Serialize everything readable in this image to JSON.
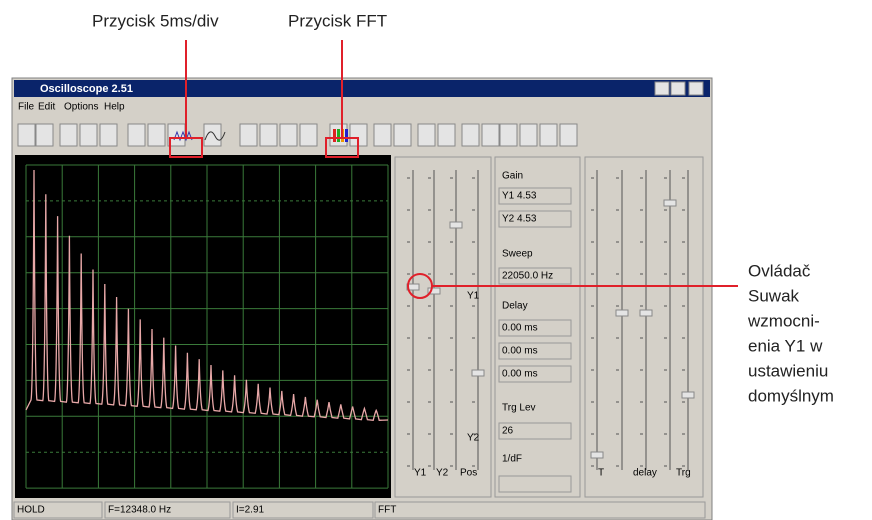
{
  "annotations": {
    "button_5ms": "Przycisk 5ms/div",
    "button_fft": "Przycisk FFT",
    "slider_note": [
      "Ovládač",
      "Suwak",
      "wzmocni-",
      "enia  Y1 w",
      "ustawieniu",
      "domyślnym"
    ]
  },
  "window": {
    "title": "Oscilloscope 2.51",
    "menu": [
      "File",
      "Edit",
      "Options",
      "Help"
    ]
  },
  "panel": {
    "gain": "Gain",
    "y1_gain": "Y1  4.53",
    "y2_gain": "Y2  4.53",
    "sweep": "Sweep",
    "sweep_value": "22050.0 Hz",
    "delay": "Delay",
    "delay_values": [
      "0.00 ms",
      "0.00 ms",
      "0.00 ms"
    ],
    "trig_lev": "Trg Lev",
    "trig_value": "26",
    "inv_df": "1/dF"
  },
  "sliders": {
    "left_labels": [
      "Y1",
      "Y2",
      "Pos"
    ],
    "y1_mark": "Y1",
    "y2_mark": "Y2",
    "right_labels": [
      "T",
      "delay",
      "Trg"
    ]
  },
  "status": [
    "HOLD",
    "F=12348.0 Hz",
    "I=2.91",
    "FFT"
  ]
}
